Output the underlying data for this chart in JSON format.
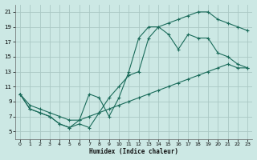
{
  "xlabel": "Humidex (Indice chaleur)",
  "background_color": "#cce8e4",
  "grid_color": "#aac8c4",
  "line_color": "#1a6b5a",
  "xlim": [
    -0.5,
    23.5
  ],
  "ylim": [
    4,
    22
  ],
  "xticks": [
    0,
    1,
    2,
    3,
    4,
    5,
    6,
    7,
    8,
    9,
    10,
    11,
    12,
    13,
    14,
    15,
    16,
    17,
    18,
    19,
    20,
    21,
    22,
    23
  ],
  "yticks": [
    5,
    7,
    9,
    11,
    13,
    15,
    17,
    19,
    21
  ],
  "line1_x": [
    0,
    1,
    2,
    3,
    4,
    5,
    6,
    7,
    8,
    9,
    10,
    11,
    12,
    13,
    14,
    15,
    16,
    17,
    18,
    19,
    20,
    21,
    22,
    23
  ],
  "line1_y": [
    10,
    8,
    7.5,
    7,
    6,
    5.5,
    6,
    5.5,
    7.5,
    9.5,
    11,
    12.5,
    13,
    17.5,
    19,
    19.5,
    20,
    20.5,
    21,
    21,
    20,
    19.5,
    19,
    18.5
  ],
  "line2_x": [
    0,
    1,
    2,
    3,
    4,
    5,
    6,
    7,
    8,
    9,
    10,
    11,
    12,
    13,
    14,
    15,
    16,
    17,
    18,
    19,
    20,
    21,
    22,
    23
  ],
  "line2_y": [
    10,
    8,
    7.5,
    7,
    6,
    5.5,
    6.5,
    10,
    9.5,
    7,
    9.5,
    13,
    17.5,
    19,
    19,
    18,
    16,
    18,
    17.5,
    17.5,
    15.5,
    15,
    14,
    13.5
  ],
  "line3_x": [
    0,
    1,
    2,
    3,
    4,
    5,
    6,
    7,
    8,
    9,
    10,
    11,
    12,
    13,
    14,
    15,
    16,
    17,
    18,
    19,
    20,
    21,
    22,
    23
  ],
  "line3_y": [
    10,
    8.5,
    8,
    7.5,
    7,
    6.5,
    6.5,
    7,
    7.5,
    8,
    8.5,
    9,
    9.5,
    10,
    10.5,
    11,
    11.5,
    12,
    12.5,
    13,
    13.5,
    14,
    13.5,
    13.5
  ]
}
